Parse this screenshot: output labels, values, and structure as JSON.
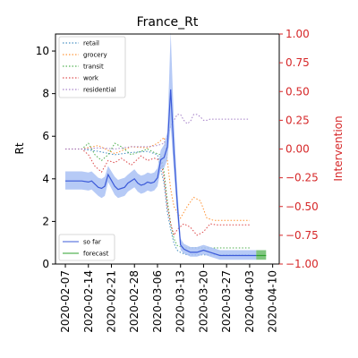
{
  "chart_data": {
    "type": "line",
    "title": "France_Rt",
    "ylabel": "Rt",
    "ylabel_right": "Intervention",
    "ylim": [
      0,
      10.8
    ],
    "ylim_right": [
      -1.0,
      1.0
    ],
    "yticks": [
      "0",
      "2",
      "4",
      "6",
      "8",
      "10"
    ],
    "yticks_right": [
      "1.00",
      "0.75",
      "0.50",
      "0.25",
      "0.00",
      "−0.25",
      "−0.50",
      "−0.75",
      "−1.00"
    ],
    "xticks": [
      "2020-02-07",
      "2020-02-14",
      "2020-02-21",
      "2020-02-28",
      "2020-03-06",
      "2020-03-13",
      "2020-03-20",
      "2020-03-27",
      "2020-04-03",
      "2020-04-10"
    ],
    "colors": {
      "rt": "#3c5bd9",
      "band": "#a9c1f5",
      "forecast": "#2ca02c",
      "right_axis": "#d62728"
    },
    "legend_rt": [
      "so far",
      "forecast"
    ],
    "legend_interventions": [
      {
        "name": "retail",
        "color": "#1f77b4"
      },
      {
        "name": "grocery",
        "color": "#ff7f0e"
      },
      {
        "name": "transit",
        "color": "#2ca02c"
      },
      {
        "name": "work",
        "color": "#d62728"
      },
      {
        "name": "residential",
        "color": "#9467bd"
      }
    ],
    "rt_series": {
      "name": "so far",
      "x": [
        0,
        5,
        7,
        8,
        10,
        11,
        12,
        13,
        15,
        16,
        17,
        18,
        19,
        21,
        22,
        23,
        24,
        25,
        26,
        27,
        28,
        29,
        30,
        31,
        32,
        33,
        34,
        35,
        36,
        38,
        40,
        42,
        44,
        47,
        50,
        53,
        56,
        58
      ],
      "y": [
        3.9,
        3.9,
        3.85,
        3.9,
        3.6,
        3.55,
        3.65,
        4.2,
        3.65,
        3.5,
        3.55,
        3.6,
        3.8,
        4.0,
        3.8,
        3.7,
        3.75,
        3.85,
        3.8,
        3.85,
        4.05,
        4.9,
        5.0,
        5.5,
        8.2,
        5.2,
        2.9,
        0.9,
        0.7,
        0.55,
        0.55,
        0.65,
        0.55,
        0.4,
        0.4,
        0.4,
        0.4,
        0.4
      ],
      "upper": [
        4.35,
        4.35,
        4.3,
        4.35,
        4.05,
        4.0,
        4.1,
        4.6,
        4.1,
        3.95,
        4.0,
        4.05,
        4.2,
        4.45,
        4.25,
        4.15,
        4.2,
        4.3,
        4.25,
        4.3,
        4.5,
        5.35,
        5.6,
        6.2,
        10.9,
        6.6,
        3.6,
        1.2,
        0.95,
        0.8,
        0.8,
        0.9,
        0.8,
        0.65,
        0.65,
        0.65,
        0.65,
        0.65
      ],
      "lower": [
        3.5,
        3.5,
        3.45,
        3.5,
        3.2,
        3.1,
        3.2,
        3.85,
        3.25,
        3.1,
        3.15,
        3.2,
        3.4,
        3.6,
        3.4,
        3.3,
        3.35,
        3.45,
        3.4,
        3.45,
        3.65,
        4.45,
        4.5,
        4.9,
        6.5,
        4.3,
        2.3,
        0.65,
        0.5,
        0.35,
        0.35,
        0.45,
        0.35,
        0.2,
        0.2,
        0.2,
        0.2,
        0.2
      ]
    },
    "forecast_series": {
      "name": "forecast",
      "x": [
        58,
        59,
        60,
        61
      ],
      "y": [
        0.4,
        0.4,
        0.4,
        0.4
      ],
      "upper": [
        0.65,
        0.65,
        0.65,
        0.65
      ],
      "lower": [
        0.2,
        0.2,
        0.2,
        0.2
      ]
    },
    "intervention_series": [
      {
        "name": "retail",
        "color": "#1f77b4",
        "x": [
          0,
          5,
          10,
          15,
          20,
          25,
          28,
          30,
          31,
          32,
          33,
          34,
          35,
          37,
          40,
          45,
          50,
          56
        ],
        "y": [
          0,
          0,
          -0.02,
          -0.05,
          -0.03,
          -0.02,
          -0.05,
          -0.3,
          -0.55,
          -0.7,
          -0.82,
          -0.88,
          -0.9,
          -0.92,
          -0.92,
          -0.92,
          -0.92,
          -0.92
        ]
      },
      {
        "name": "grocery",
        "color": "#ff7f0e",
        "x": [
          0,
          5,
          10,
          15,
          20,
          25,
          28,
          30,
          31,
          32,
          33,
          34,
          35,
          37,
          39,
          41,
          43,
          45,
          50,
          56
        ],
        "y": [
          0,
          0,
          0.03,
          -0.04,
          0.02,
          0.01,
          0.05,
          0.1,
          -0.1,
          -0.35,
          -0.5,
          -0.55,
          -0.6,
          -0.5,
          -0.42,
          -0.45,
          -0.6,
          -0.62,
          -0.62,
          -0.62
        ]
      },
      {
        "name": "transit",
        "color": "#2ca02c",
        "x": [
          0,
          5,
          7,
          9,
          11,
          13,
          15,
          17,
          20,
          23,
          25,
          27,
          29,
          30,
          31,
          32,
          33,
          34,
          36,
          40,
          45,
          50,
          56
        ],
        "y": [
          0,
          0,
          0.05,
          -0.05,
          -0.1,
          -0.05,
          0.05,
          0.02,
          -0.05,
          -0.02,
          0.0,
          -0.03,
          -0.05,
          -0.2,
          -0.45,
          -0.65,
          -0.78,
          -0.84,
          -0.86,
          -0.86,
          -0.86,
          -0.86,
          -0.86
        ]
      },
      {
        "name": "work",
        "color": "#d62728",
        "x": [
          0,
          5,
          7,
          9,
          11,
          13,
          15,
          17,
          20,
          23,
          25,
          27,
          29,
          30,
          31,
          32,
          33,
          34,
          36,
          38,
          40,
          42,
          44,
          46,
          50,
          56
        ],
        "y": [
          0,
          0,
          -0.05,
          -0.15,
          -0.2,
          -0.1,
          -0.12,
          -0.08,
          -0.14,
          -0.06,
          -0.1,
          -0.08,
          -0.1,
          -0.25,
          -0.5,
          -0.65,
          -0.75,
          -0.7,
          -0.65,
          -0.68,
          -0.75,
          -0.72,
          -0.65,
          -0.66,
          -0.66,
          -0.66
        ]
      },
      {
        "name": "residential",
        "color": "#9467bd",
        "x": [
          0,
          5,
          10,
          15,
          20,
          25,
          28,
          30,
          31,
          32,
          33,
          34,
          35,
          36,
          37,
          38,
          39,
          40,
          41,
          42,
          43,
          44,
          45,
          50,
          56
        ],
        "y": [
          0,
          0,
          0.01,
          0.0,
          0.02,
          0.02,
          0.03,
          0.05,
          0.12,
          0.2,
          0.25,
          0.3,
          0.3,
          0.25,
          0.22,
          0.24,
          0.3,
          0.3,
          0.28,
          0.25,
          0.25,
          0.26,
          0.26,
          0.26,
          0.26
        ]
      }
    ]
  }
}
